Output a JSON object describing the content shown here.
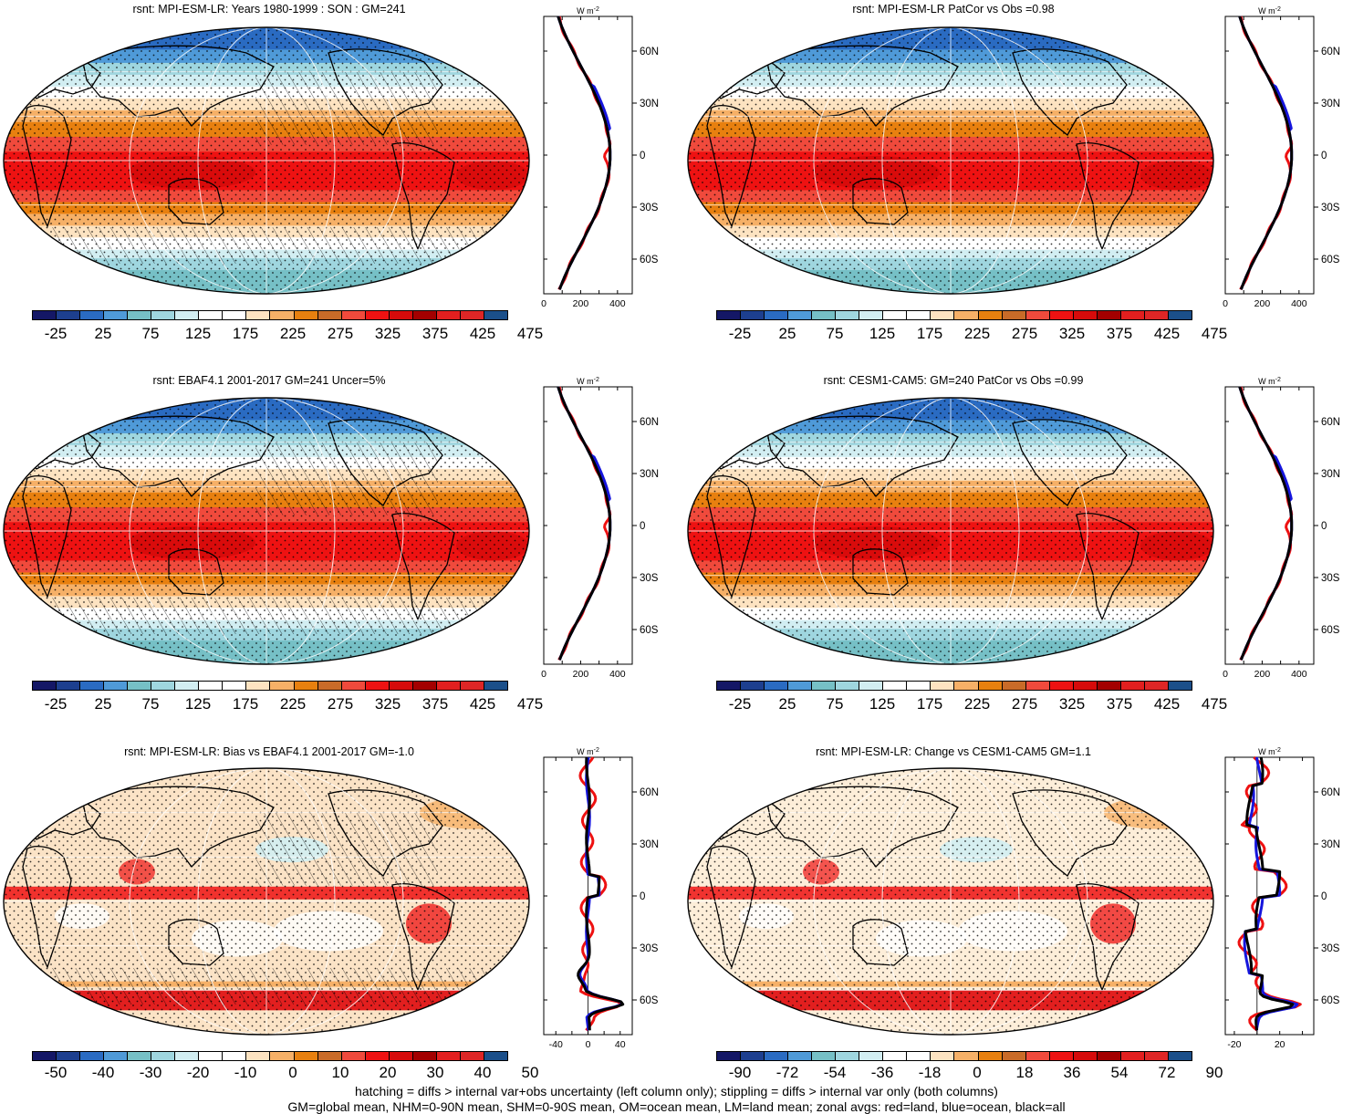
{
  "panels": [
    {
      "title": "rsnt: MPI-ESM-LR: Years 1980-1999 : SON : GM=241",
      "kind": "abs",
      "hatch": true,
      "zlim": [
        0,
        480
      ],
      "zticks": [
        "0",
        "200",
        "400"
      ],
      "zero": null
    },
    {
      "title": "rsnt: MPI-ESM-LR PatCor vs Obs =0.98",
      "kind": "abs",
      "hatch": false,
      "zlim": [
        0,
        480
      ],
      "zticks": [
        "0",
        "200",
        "400"
      ],
      "zero": null
    },
    {
      "title": "rsnt: EBAF4.1 2001-2017 GM=241 Uncer=5%",
      "kind": "abs",
      "hatch": true,
      "zlim": [
        0,
        480
      ],
      "zticks": [
        "0",
        "100",
        "200",
        "400"
      ],
      "zero": null
    },
    {
      "title": "rsnt: CESM1-CAM5: GM=240 PatCor vs Obs =0.99",
      "kind": "abs",
      "hatch": false,
      "zlim": [
        0,
        480
      ],
      "zticks": [
        "0",
        "200",
        "400"
      ],
      "zero": null
    },
    {
      "title": "rsnt: MPI-ESM-LR: Bias vs EBAF4.1 2001-2017  GM=-1.0",
      "kind": "bias",
      "hatch": true,
      "zlim": [
        -55,
        55
      ],
      "zticks": [
        "-40",
        "0",
        "40"
      ],
      "zero": 0
    },
    {
      "title": "rsnt: MPI-ESM-LR: Change vs CESM1-CAM5 GM=1.1",
      "kind": "change",
      "hatch": false,
      "zlim": [
        -28,
        50
      ],
      "zticks": [
        "-20",
        "20"
      ],
      "zero": 0
    }
  ],
  "lat_labels": [
    "60N",
    "30N",
    "0",
    "30S",
    "60S"
  ],
  "units_label": "W m",
  "units_sup": "-2",
  "colorbars": {
    "abs": [
      "-25",
      "25",
      "75",
      "125",
      "175",
      "225",
      "275",
      "325",
      "375",
      "425",
      "475"
    ],
    "bias": [
      "-50",
      "-40",
      "-30",
      "-20",
      "-10",
      "0",
      "10",
      "20",
      "30",
      "40",
      "50"
    ],
    "change": [
      "-90",
      "-72",
      "-54",
      "-36",
      "-18",
      "0",
      "18",
      "36",
      "54",
      "72",
      "90"
    ]
  },
  "palette": [
    "#141766",
    "#1d3f8f",
    "#2a6bc2",
    "#4f9ad8",
    "#76c0c6",
    "#9fd6df",
    "#d2eef2",
    "#ffffff",
    "#ffffff",
    "#fde3c1",
    "#f6b067",
    "#e8800f",
    "#c96b28",
    "#f04a3c",
    "#ee1212",
    "#d60b0b",
    "#a30000",
    "#e21f1f",
    "#de2626",
    "#1b4f8a"
  ],
  "footer": {
    "line1": "hatching = diffs > internal var+obs uncertainty (left column only); stippling = diffs > internal var only (both columns)",
    "line2": "GM=global mean, NHM=0-90N mean, SHM=0-90S mean, OM=ocean mean, LM=land mean; zonal avgs: red=land, blue=ocean, black=all"
  },
  "line_colors": {
    "land": "#ee1111",
    "ocean": "#1515dd",
    "all": "#000000"
  }
}
